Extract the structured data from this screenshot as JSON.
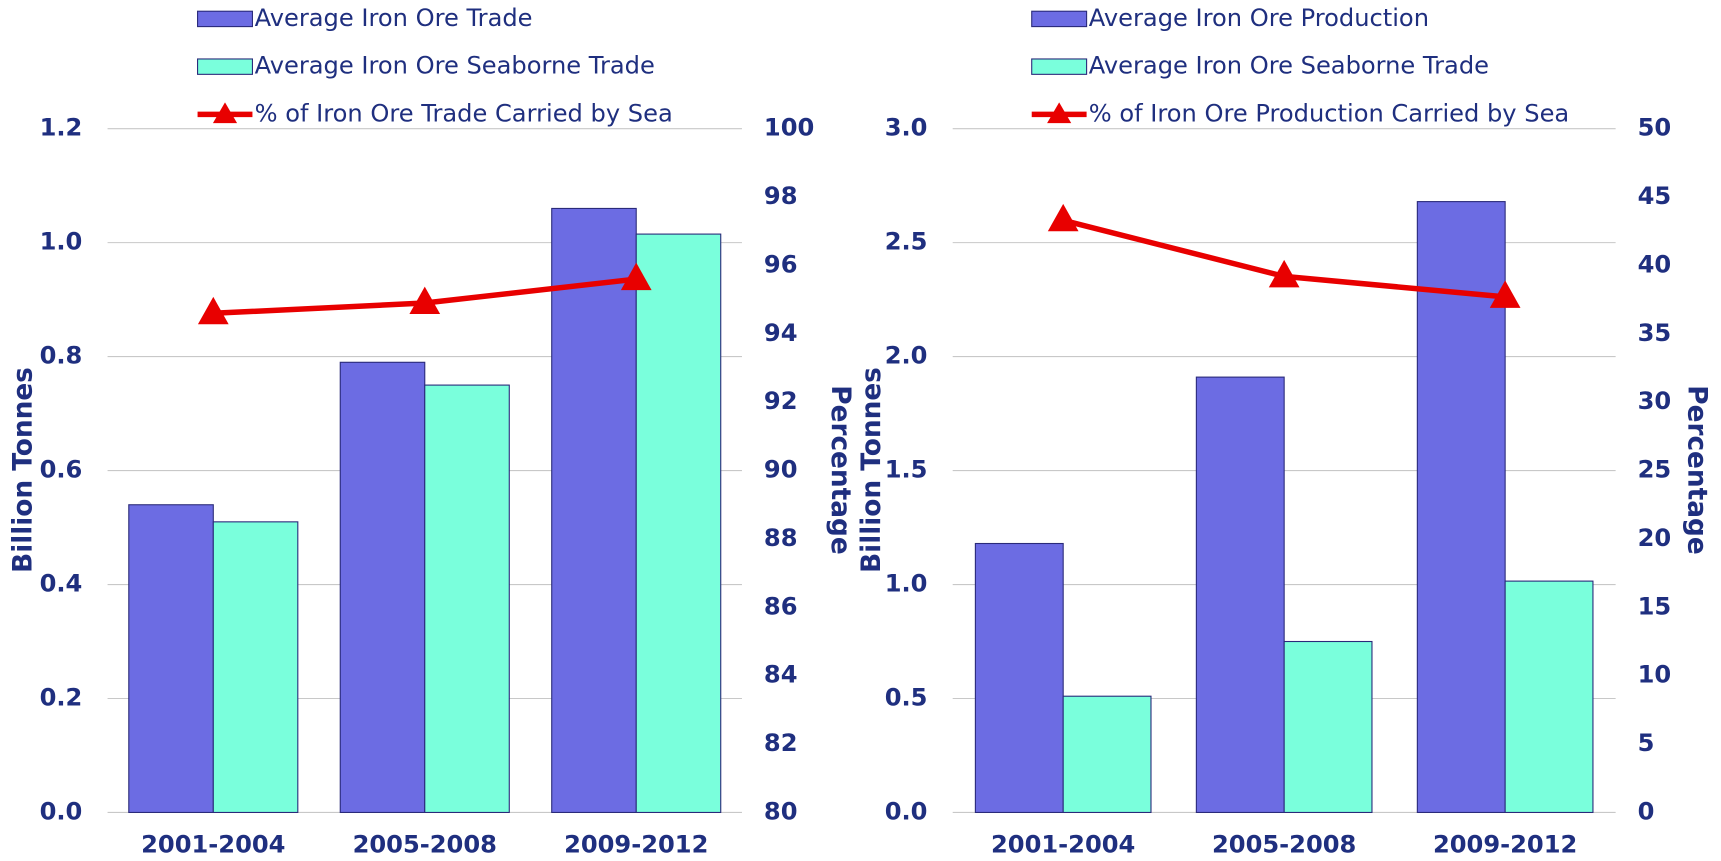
{
  "chart_data": [
    {
      "type": "bar",
      "categories": [
        "2001-2004",
        "2005-2008",
        "2009-2012"
      ],
      "series": [
        {
          "name": "Average Iron Ore Trade",
          "color": "#6c6ce3",
          "values": [
            0.54,
            0.79,
            1.06
          ]
        },
        {
          "name": "Average Iron Ore Seaborne Trade",
          "color": "#7affdc",
          "values": [
            0.51,
            0.75,
            1.015
          ]
        },
        {
          "name": "% of Iron Ore Trade Carried by Sea",
          "color": "#e80000",
          "type": "line",
          "axis": "y2",
          "values": [
            94.6,
            94.9,
            95.6
          ]
        }
      ],
      "ylabel": "Billion Tonnes",
      "y2label": "Percentage",
      "ylim": [
        0,
        1.2
      ],
      "yticks": [
        {
          "value": 0,
          "label": "0.0"
        },
        0.2,
        0.4,
        0.6,
        0.8,
        {
          "value": 1,
          "label": "1.0"
        },
        1.2
      ],
      "y2lim": [
        80,
        100
      ],
      "y2ticks": [
        80,
        82,
        84,
        86,
        88,
        90,
        92,
        94,
        96,
        98,
        100
      ],
      "grid": true
    },
    {
      "type": "bar",
      "categories": [
        "2001-2004",
        "2005-2008",
        "2009-2012"
      ],
      "series": [
        {
          "name": "Average Iron Ore Production",
          "color": "#6c6ce3",
          "values": [
            1.18,
            1.91,
            2.68
          ]
        },
        {
          "name": "Average Iron Ore Seaborne Trade",
          "color": "#7affdc",
          "values": [
            0.51,
            0.75,
            1.015
          ]
        },
        {
          "name": "% of Iron Ore Production Carried by Sea",
          "color": "#e80000",
          "type": "line",
          "axis": "y2",
          "values": [
            43.3,
            39.2,
            37.7
          ]
        }
      ],
      "ylabel": "Billion Tonnes",
      "y2label": "Percentage",
      "ylim": [
        0,
        3
      ],
      "yticks": [
        {
          "value": 0,
          "label": "0.0"
        },
        0.5,
        {
          "value": 1,
          "label": "1.0"
        },
        1.5,
        {
          "value": 2,
          "label": "2.0"
        },
        2.5,
        {
          "value": 3,
          "label": "3.0"
        }
      ],
      "y2lim": [
        0,
        50
      ],
      "y2ticks": [
        0,
        5,
        10,
        15,
        20,
        25,
        30,
        35,
        40,
        45,
        50
      ],
      "grid": true
    }
  ]
}
